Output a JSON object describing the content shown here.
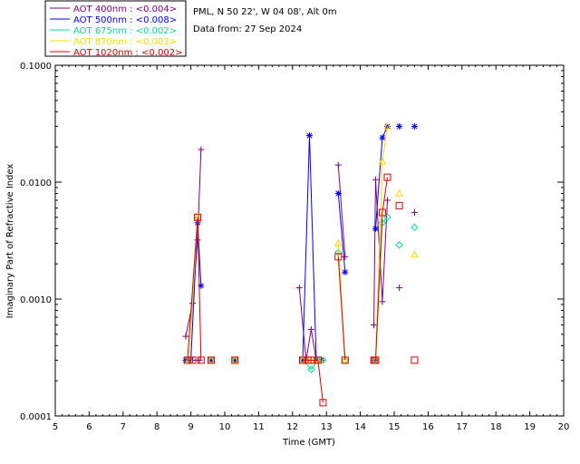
{
  "chart_data": {
    "type": "scatter",
    "title": "",
    "xlabel": "Time (GMT)",
    "ylabel": "Imaginary Part of Refractive Index",
    "xlim": [
      5,
      20
    ],
    "ylim": [
      0.0001,
      0.1
    ],
    "yscale": "log",
    "x_ticks": [
      "5",
      "6",
      "7",
      "8",
      "9",
      "10",
      "11",
      "12",
      "13",
      "14",
      "15",
      "16",
      "17",
      "18",
      "19",
      "20"
    ],
    "y_ticks": [
      "0.0001",
      "0.0010",
      "0.0100",
      "0.1000"
    ],
    "info": {
      "location": "PML, N 50 22', W 04 08', Alt 0m",
      "date": "Data from: 27 Sep 2024"
    },
    "series": [
      {
        "name": "AOT  400nm : <0.004>",
        "color": "#800080",
        "marker": "plus",
        "points": [
          [
            8.85,
            0.00048
          ],
          [
            9.05,
            0.00092
          ],
          [
            9.2,
            0.0032
          ],
          [
            9.3,
            0.019
          ],
          [
            12.2,
            0.00125
          ],
          [
            12.4,
            0.0003
          ],
          [
            12.55,
            0.00055
          ],
          [
            12.7,
            0.0003
          ],
          [
            13.35,
            0.014
          ],
          [
            13.55,
            0.0023
          ],
          [
            14.4,
            0.0006
          ],
          [
            14.45,
            0.0105
          ],
          [
            14.65,
            0.00095
          ],
          [
            14.8,
            0.007
          ],
          [
            15.15,
            0.00125
          ],
          [
            15.6,
            0.0055
          ]
        ],
        "segments": [
          [
            0,
            3
          ],
          [
            4,
            7
          ],
          [
            8,
            9
          ],
          [
            10,
            13
          ]
        ],
        "extras": [
          [
            8.9,
            0.0003
          ],
          [
            9.05,
            0.0003
          ],
          [
            9.25,
            0.0003
          ],
          [
            9.6,
            0.0003
          ],
          [
            10.3,
            0.0003
          ],
          [
            12.8,
            0.0003
          ],
          [
            14.4,
            0.0003
          ]
        ]
      },
      {
        "name": "AOT  500nm : <0.008>",
        "color": "#0000ff",
        "marker": "star",
        "points": [
          [
            9.0,
            0.0003
          ],
          [
            9.2,
            0.0045
          ],
          [
            9.3,
            0.0013
          ],
          [
            12.3,
            0.0003
          ],
          [
            12.5,
            0.025
          ],
          [
            12.7,
            0.0003
          ],
          [
            13.35,
            0.008
          ],
          [
            13.55,
            0.0017
          ],
          [
            14.45,
            0.004
          ],
          [
            14.65,
            0.024
          ],
          [
            14.8,
            0.03
          ],
          [
            15.15,
            0.03
          ],
          [
            15.6,
            0.03
          ]
        ],
        "segments": [
          [
            0,
            2
          ],
          [
            3,
            5
          ],
          [
            6,
            7
          ],
          [
            8,
            10
          ]
        ],
        "extras": [
          [
            8.85,
            0.0003
          ],
          [
            9.6,
            0.0003
          ],
          [
            10.3,
            0.0003
          ],
          [
            12.85,
            0.0003
          ],
          [
            14.4,
            0.0003
          ]
        ]
      },
      {
        "name": "AOT  675nm : <0.002>",
        "color": "#00e090",
        "marker": "diamond",
        "points": [
          [
            8.95,
            0.0003
          ],
          [
            9.2,
            0.0048
          ],
          [
            12.3,
            0.0003
          ],
          [
            12.55,
            0.00025
          ],
          [
            12.75,
            0.0003
          ],
          [
            12.9,
            0.0003
          ],
          [
            13.35,
            0.0025
          ],
          [
            13.55,
            0.0003
          ],
          [
            14.45,
            0.0003
          ],
          [
            14.65,
            0.0045
          ],
          [
            14.8,
            0.005
          ],
          [
            15.15,
            0.0029
          ],
          [
            15.6,
            0.0041
          ]
        ],
        "segments": [
          [
            0,
            1
          ],
          [
            2,
            5
          ],
          [
            6,
            7
          ],
          [
            8,
            10
          ]
        ],
        "extras": [
          [
            9.6,
            0.0003
          ],
          [
            10.3,
            0.0003
          ]
        ]
      },
      {
        "name": "AOT  870nm : <0.003>",
        "color": "#ffd700",
        "marker": "triangle",
        "points": [
          [
            8.95,
            0.0003
          ],
          [
            9.2,
            0.0052
          ],
          [
            12.3,
            0.0003
          ],
          [
            12.55,
            0.0003
          ],
          [
            12.8,
            0.0003
          ],
          [
            13.35,
            0.003
          ],
          [
            13.55,
            0.0003
          ],
          [
            14.45,
            0.0003
          ],
          [
            14.65,
            0.015
          ],
          [
            14.8,
            0.03
          ],
          [
            15.15,
            0.008
          ],
          [
            15.6,
            0.0024
          ]
        ],
        "segments": [
          [
            0,
            1
          ],
          [
            2,
            4
          ],
          [
            5,
            6
          ],
          [
            7,
            9
          ]
        ],
        "extras": [
          [
            9.6,
            0.0003
          ],
          [
            10.3,
            0.0003
          ]
        ]
      },
      {
        "name": "AOT 1020nm : <0.002>",
        "color": "#e00000",
        "marker": "square",
        "points": [
          [
            8.9,
            0.0003
          ],
          [
            9.2,
            0.005
          ],
          [
            9.3,
            0.0003
          ],
          [
            12.3,
            0.0003
          ],
          [
            12.55,
            0.0003
          ],
          [
            12.75,
            0.0003
          ],
          [
            12.9,
            0.00013
          ],
          [
            13.35,
            0.0023
          ],
          [
            13.55,
            0.0003
          ],
          [
            14.45,
            0.0003
          ],
          [
            14.65,
            0.0055
          ],
          [
            14.8,
            0.011
          ],
          [
            15.15,
            0.0063
          ],
          [
            15.6,
            0.0003
          ]
        ],
        "segments": [
          [
            0,
            2
          ],
          [
            3,
            6
          ],
          [
            7,
            8
          ],
          [
            9,
            11
          ]
        ],
        "extras": [
          [
            9.05,
            0.0003
          ],
          [
            9.6,
            0.0003
          ],
          [
            10.3,
            0.0003
          ],
          [
            12.45,
            0.0003
          ],
          [
            14.4,
            0.0003
          ]
        ]
      }
    ]
  }
}
